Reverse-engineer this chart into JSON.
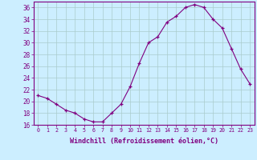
{
  "hours": [
    0,
    1,
    2,
    3,
    4,
    5,
    6,
    7,
    8,
    9,
    10,
    11,
    12,
    13,
    14,
    15,
    16,
    17,
    18,
    19,
    20,
    21,
    22,
    23
  ],
  "values": [
    21,
    20.5,
    19.5,
    18.5,
    18,
    17,
    16.5,
    16.5,
    18,
    19.5,
    22.5,
    26.5,
    30,
    31,
    33.5,
    34.5,
    36,
    36.5,
    36,
    34,
    32.5,
    29,
    25.5,
    23
  ],
  "line_color": "#800080",
  "marker_color": "#800080",
  "bg_color": "#cceeff",
  "grid_color": "#aacccc",
  "xlabel": "Windchill (Refroidissement éolien,°C)",
  "ylim": [
    16,
    37
  ],
  "yticks": [
    16,
    18,
    20,
    22,
    24,
    26,
    28,
    30,
    32,
    34,
    36
  ],
  "axis_label_color": "#800080",
  "tick_color": "#800080",
  "spine_color": "#800080"
}
